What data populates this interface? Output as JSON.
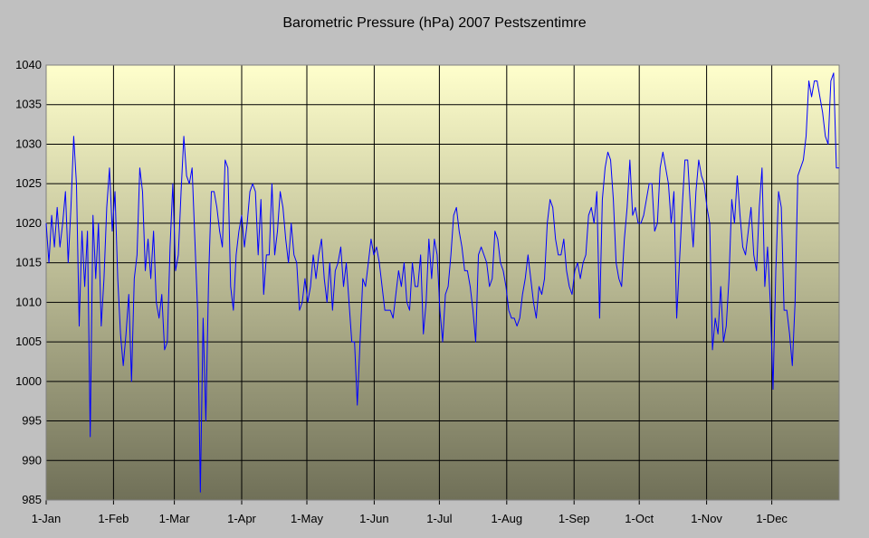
{
  "chart_data": {
    "type": "line",
    "title": "Barometric Pressure (hPa) 2007 Pestszentimre",
    "xlabel": "",
    "ylabel": "",
    "ylim": [
      985,
      1040
    ],
    "yticks": [
      985,
      990,
      995,
      1000,
      1005,
      1010,
      1015,
      1020,
      1025,
      1030,
      1035,
      1040
    ],
    "xticks": [
      "1-Jan",
      "1-Feb",
      "1-Mar",
      "1-Apr",
      "1-May",
      "1-Jun",
      "1-Jul",
      "1-Aug",
      "1-Sep",
      "1-Oct",
      "1-Nov",
      "1-Dec"
    ],
    "grid": true,
    "colors": {
      "line": "#0000ff",
      "grid": "#000000",
      "plot_top": "#ffffcc",
      "plot_bottom": "#707058",
      "background": "#c0c0c0"
    },
    "series": [
      {
        "values": [
          1020,
          1015,
          1021,
          1017,
          1022,
          1017,
          1020,
          1024,
          1015,
          1022,
          1031,
          1025,
          1007,
          1019,
          1012,
          1019,
          993,
          1021,
          1013,
          1020,
          1007,
          1013,
          1022,
          1027,
          1019,
          1024,
          1013,
          1006,
          1002,
          1006,
          1011,
          1000,
          1013,
          1016,
          1027,
          1024,
          1014,
          1018,
          1013,
          1019,
          1010,
          1008,
          1011,
          1004,
          1005,
          1017,
          1025,
          1014,
          1016,
          1024,
          1031,
          1026,
          1025,
          1027,
          1018,
          1009,
          986,
          1008,
          995,
          1013,
          1024,
          1024,
          1022,
          1019,
          1017,
          1028,
          1027,
          1012,
          1009,
          1016,
          1019,
          1021,
          1017,
          1020,
          1024,
          1025,
          1024,
          1016,
          1023,
          1011,
          1016,
          1016,
          1025,
          1016,
          1019,
          1024,
          1022,
          1018,
          1015,
          1020,
          1016,
          1015,
          1009,
          1010,
          1013,
          1010,
          1012,
          1016,
          1013,
          1016,
          1018,
          1013,
          1010,
          1015,
          1009,
          1014,
          1015,
          1017,
          1012,
          1015,
          1010,
          1005,
          1005,
          997,
          1005,
          1013,
          1012,
          1015,
          1018,
          1016,
          1017,
          1015,
          1012,
          1009,
          1009,
          1009,
          1008,
          1011,
          1014,
          1012,
          1015,
          1010,
          1009,
          1015,
          1012,
          1012,
          1016,
          1006,
          1010,
          1018,
          1013,
          1018,
          1016,
          1009,
          1005,
          1011,
          1012,
          1016,
          1021,
          1022,
          1019,
          1017,
          1014,
          1014,
          1012,
          1009,
          1005,
          1016,
          1017,
          1016,
          1015,
          1012,
          1013,
          1019,
          1018,
          1015,
          1014,
          1012,
          1009,
          1008,
          1008,
          1007,
          1008,
          1011,
          1013,
          1016,
          1013,
          1010,
          1008,
          1012,
          1011,
          1013,
          1020,
          1023,
          1022,
          1018,
          1016,
          1016,
          1018,
          1014,
          1012,
          1011,
          1014,
          1015,
          1013,
          1015,
          1016,
          1021,
          1022,
          1020,
          1024,
          1008,
          1023,
          1027,
          1029,
          1028,
          1023,
          1015,
          1013,
          1012,
          1018,
          1022,
          1028,
          1021,
          1022,
          1020,
          1020,
          1021,
          1023,
          1025,
          1025,
          1019,
          1020,
          1027,
          1029,
          1027,
          1025,
          1020,
          1024,
          1008,
          1015,
          1022,
          1028,
          1028,
          1022,
          1017,
          1024,
          1028,
          1026,
          1025,
          1022,
          1020,
          1004,
          1008,
          1006,
          1012,
          1005,
          1007,
          1013,
          1023,
          1020,
          1026,
          1021,
          1017,
          1016,
          1019,
          1022,
          1016,
          1014,
          1022,
          1027,
          1012,
          1017,
          1010,
          999,
          1014,
          1024,
          1022,
          1009,
          1009,
          1006,
          1002,
          1010,
          1026,
          1027,
          1028,
          1031,
          1038,
          1036,
          1038,
          1038,
          1036,
          1034,
          1031,
          1030,
          1038,
          1039,
          1027,
          1027
        ]
      }
    ]
  }
}
